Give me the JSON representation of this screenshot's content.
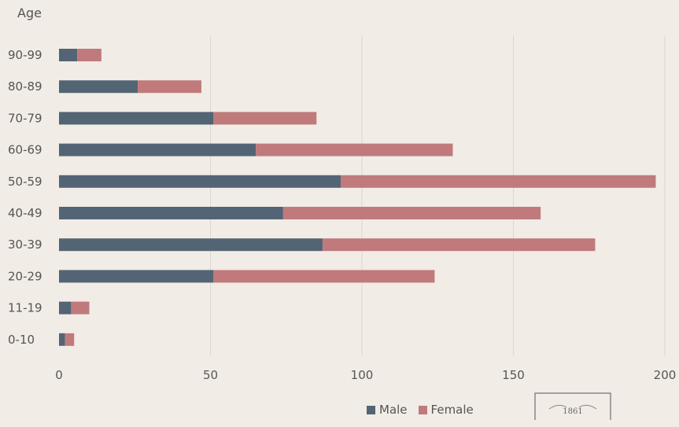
{
  "chart_data": {
    "type": "bar",
    "orientation": "horizontal",
    "stacked": true,
    "ylabel": "Age",
    "categories": [
      "90-99",
      "80-89",
      "70-79",
      "60-69",
      "50-59",
      "40-49",
      "30-39",
      "20-29",
      "11-19",
      "0-10"
    ],
    "series": [
      {
        "name": "Male",
        "values": [
          6,
          26,
          51,
          65,
          93,
          74,
          87,
          51,
          4,
          2
        ],
        "color": "#536475"
      },
      {
        "name": "Female",
        "values": [
          8,
          21,
          34,
          65,
          104,
          85,
          90,
          73,
          6,
          3
        ],
        "color": "#c07a7c"
      }
    ],
    "xlim": [
      0,
      200
    ],
    "xticks": [
      "0",
      "50",
      "100",
      "150",
      "200"
    ],
    "grid": true,
    "legend_position": "bottom"
  },
  "logo": {
    "text": "1861",
    "icon": "wheat-seal-icon"
  }
}
